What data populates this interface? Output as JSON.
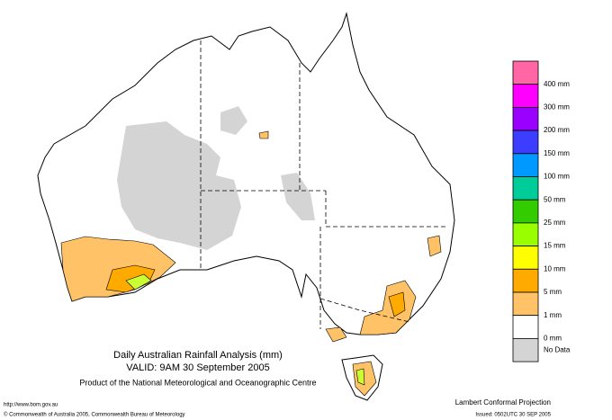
{
  "title": "Daily Australian Rainfall Analysis (mm)",
  "valid": "VALID: 9AM 30 September 2005",
  "product": "Product of the National Meteorological and Oceanographic Centre",
  "url": "http://www.bom.gov.au",
  "copyright": "© Commonwealth of Australia 2005, Commonwealth Bureau of Meteorology",
  "projection": "Lambert Conformal Projection",
  "issued": "Issued: 0502UTC 30 SEP 2005",
  "legend": {
    "colors": [
      "#ff66a3",
      "#ff00ff",
      "#9900ff",
      "#3d3dff",
      "#0099ff",
      "#00cc99",
      "#33cc00",
      "#99ff00",
      "#ffff00",
      "#ffaa00",
      "#ffc266",
      "#ffffff",
      "#d4d4d4"
    ],
    "labels": [
      "400 mm",
      "300 mm",
      "200 mm",
      "150 mm",
      "100 mm",
      "50 mm",
      "25 mm",
      "15 mm",
      "10 mm",
      "5 mm",
      "1 mm",
      "0 mm",
      "No Data"
    ]
  }
}
